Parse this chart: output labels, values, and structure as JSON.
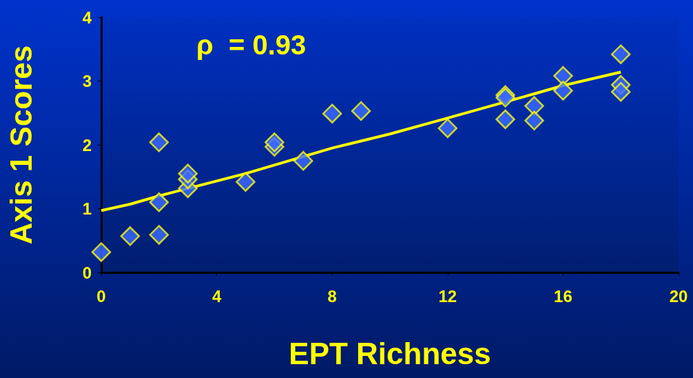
{
  "chart_data": {
    "type": "scatter",
    "xlabel": "EPT Richness",
    "ylabel": "Axis 1 Scores",
    "annotations": [
      "ρ  = 0.93"
    ],
    "xlim": [
      0,
      20
    ],
    "xticks": [
      0,
      4,
      8,
      12,
      16,
      20
    ],
    "ylim": [
      0,
      4
    ],
    "yticks": [
      0,
      1,
      2,
      3,
      4
    ],
    "grid": false,
    "series": [
      {
        "marker": "diamond",
        "color": "#3d6bff",
        "x": [
          0,
          1,
          2,
          2,
          2,
          3,
          3,
          3,
          5,
          6,
          6,
          7,
          8,
          9,
          12,
          14,
          14,
          14,
          15,
          15,
          16,
          16,
          18,
          18,
          18
        ],
        "values": [
          0.32,
          0.57,
          0.59,
          1.1,
          2.04,
          1.32,
          1.46,
          1.55,
          1.42,
          1.97,
          2.04,
          1.75,
          2.49,
          2.53,
          2.26,
          2.78,
          2.74,
          2.4,
          2.61,
          2.38,
          3.08,
          2.85,
          3.42,
          2.94,
          2.83
        ]
      },
      {
        "type": "line",
        "marker": "none",
        "color": "#ffff00",
        "line_style": "solid",
        "x": [
          0,
          1,
          2,
          5,
          8,
          10,
          12,
          15,
          16,
          18
        ],
        "values": [
          0.97,
          1.07,
          1.2,
          1.55,
          1.95,
          2.17,
          2.42,
          2.8,
          2.93,
          3.14
        ]
      }
    ]
  }
}
